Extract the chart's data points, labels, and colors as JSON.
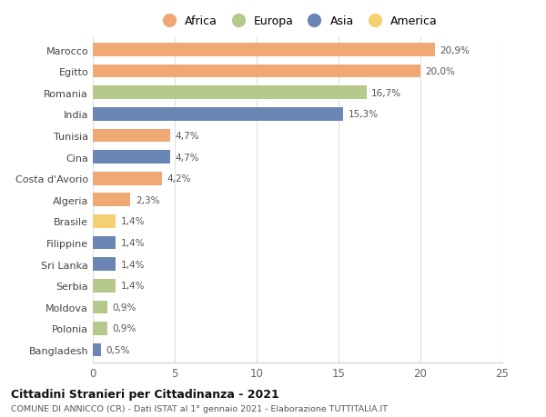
{
  "countries": [
    "Marocco",
    "Egitto",
    "Romania",
    "India",
    "Tunisia",
    "Cina",
    "Costa d'Avorio",
    "Algeria",
    "Brasile",
    "Filippine",
    "Sri Lanka",
    "Serbia",
    "Moldova",
    "Polonia",
    "Bangladesh"
  ],
  "values": [
    20.9,
    20.0,
    16.7,
    15.3,
    4.7,
    4.7,
    4.2,
    2.3,
    1.4,
    1.4,
    1.4,
    1.4,
    0.9,
    0.9,
    0.5
  ],
  "labels": [
    "20,9%",
    "20,0%",
    "16,7%",
    "15,3%",
    "4,7%",
    "4,7%",
    "4,2%",
    "2,3%",
    "1,4%",
    "1,4%",
    "1,4%",
    "1,4%",
    "0,9%",
    "0,9%",
    "0,5%"
  ],
  "continents": [
    "Africa",
    "Africa",
    "Europa",
    "Asia",
    "Africa",
    "Asia",
    "Africa",
    "Africa",
    "America",
    "Asia",
    "Asia",
    "Europa",
    "Europa",
    "Europa",
    "Asia"
  ],
  "colors": {
    "Africa": "#F0A875",
    "Europa": "#B5C98A",
    "Asia": "#6B85B5",
    "America": "#F5D070"
  },
  "legend_order": [
    "Africa",
    "Europa",
    "Asia",
    "America"
  ],
  "xlim": [
    0,
    25
  ],
  "xticks": [
    0,
    5,
    10,
    15,
    20,
    25
  ],
  "title": "Cittadini Stranieri per Cittadinanza - 2021",
  "subtitle": "COMUNE DI ANNICCO (CR) - Dati ISTAT al 1° gennaio 2021 - Elaborazione TUTTITALIA.IT",
  "bg_color": "#ffffff",
  "grid_color": "#e0e0e0",
  "bar_height": 0.62
}
